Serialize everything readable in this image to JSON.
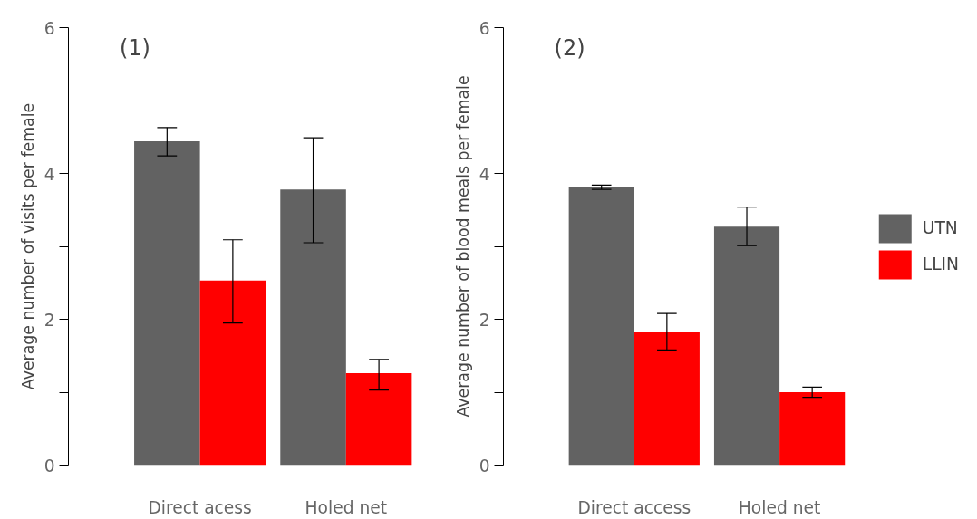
{
  "chart_data": [
    {
      "type": "bar",
      "annotations": [
        "(1)"
      ],
      "ylabel": "Average number of visits per female",
      "categories": [
        "Direct acess",
        "Holed net"
      ],
      "series": [
        {
          "color": "#626262",
          "values": [
            4.44,
            3.78
          ],
          "errors": [
            [
              4.24,
              4.63
            ],
            [
              3.05,
              4.49
            ]
          ]
        },
        {
          "color": "#ff0000",
          "values": [
            2.53,
            1.26
          ],
          "errors": [
            [
              1.95,
              3.09
            ],
            [
              1.03,
              1.45
            ]
          ]
        }
      ],
      "ylim": [
        0,
        6
      ],
      "yticks": [
        0,
        2,
        4,
        6
      ],
      "grid": false,
      "legend": false
    },
    {
      "type": "bar",
      "annotations": [
        "(2)"
      ],
      "ylabel": "Average number of blood meals per female",
      "categories": [
        "Direct access",
        "Holed net"
      ],
      "series": [
        {
          "name": "UTN",
          "color": "#626262",
          "values": [
            3.81,
            3.27
          ],
          "errors": [
            [
              3.78,
              3.84
            ],
            [
              3.01,
              3.54
            ]
          ]
        },
        {
          "name": "LLIN",
          "color": "#ff0000",
          "values": [
            1.83,
            1.0
          ],
          "errors": [
            [
              1.58,
              2.08
            ],
            [
              0.93,
              1.07
            ]
          ]
        }
      ],
      "ylim": [
        0,
        6
      ],
      "yticks": [
        0,
        2,
        4,
        6
      ],
      "grid": false,
      "legend": "right"
    }
  ]
}
